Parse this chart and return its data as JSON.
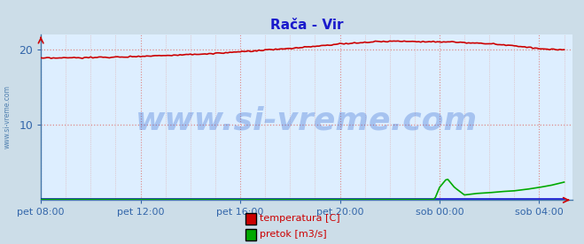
{
  "title": "Rača - Vir",
  "title_color": "#1a1acc",
  "bg_color": "#ccdde8",
  "plot_bg_color": "#ddeeff",
  "yticks": [
    10,
    20
  ],
  "ytick_color": "#3366aa",
  "xtick_labels": [
    "pet 08:00",
    "pet 12:00",
    "pet 16:00",
    "pet 20:00",
    "sob 00:00",
    "sob 04:00"
  ],
  "xtick_positions": [
    0,
    4,
    8,
    12,
    16,
    20
  ],
  "xlim": [
    0,
    21.33
  ],
  "ylim": [
    0,
    22
  ],
  "temp_color": "#cc0000",
  "pretok_color": "#00aa00",
  "visina_color": "#0000cc",
  "hgrid_color": "#dd8888",
  "vgrid_major_color": "#dd8888",
  "vgrid_minor_color": "#ddaaaa",
  "legend_temp_label": "temperatura [C]",
  "legend_pretok_label": "pretok [m3/s]",
  "legend_color": "#cc0000",
  "watermark": "www.si-vreme.com",
  "watermark_color": "#1a55cc",
  "watermark_alpha": 0.28,
  "watermark_fontsize": 26,
  "sidebar_text": "www.si-vreme.com",
  "sidebar_color": "#4477aa",
  "title_fontsize": 11
}
